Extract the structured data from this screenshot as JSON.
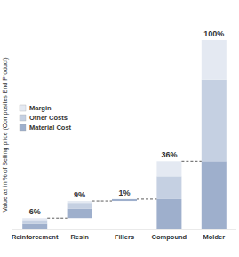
{
  "chart_data": {
    "type": "waterfall",
    "y_label": "Value as in % of Selling price (Composites End Product)",
    "categories": [
      "Reinforcement",
      "Resin",
      "Fillers",
      "Compound",
      "Molder"
    ],
    "is_total": [
      false,
      false,
      false,
      true,
      true
    ],
    "series": [
      {
        "name": "Material Cost",
        "color": "#9eafcc",
        "values": [
          3,
          5,
          1,
          16,
          36
        ]
      },
      {
        "name": "Other Costs",
        "color": "#c5d0e2",
        "values": [
          2,
          3,
          0,
          12,
          43
        ]
      },
      {
        "name": "Margin",
        "color": "#e4e9f2",
        "values": [
          1,
          1,
          0,
          8,
          21
        ]
      }
    ],
    "totals": {
      "values": [
        6,
        9,
        1,
        36,
        100
      ],
      "value_labels": [
        "6%",
        "9%",
        "1%",
        "36%",
        "100%"
      ]
    },
    "ylim": [
      0,
      100
    ],
    "stacked": true,
    "data_labels": true,
    "tick_labels": "x",
    "legend": "upper left",
    "grid": false
  }
}
